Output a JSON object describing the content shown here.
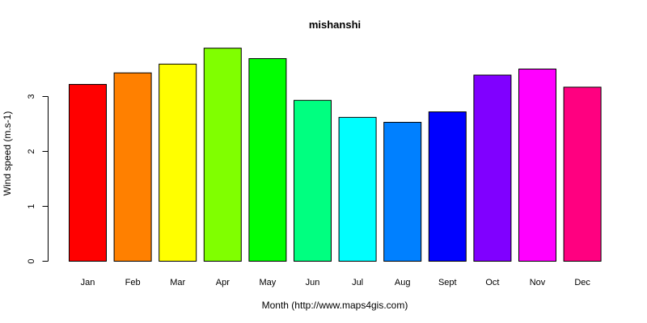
{
  "chart_data": {
    "type": "bar",
    "title": "mishanshi",
    "xlabel": "Month (http://www.maps4gis.com)",
    "ylabel": "Wind speed (m.s-1)",
    "categories": [
      "Jan",
      "Feb",
      "Mar",
      "Apr",
      "May",
      "Jun",
      "Jul",
      "Aug",
      "Sept",
      "Oct",
      "Nov",
      "Dec"
    ],
    "values": [
      3.22,
      3.43,
      3.59,
      3.88,
      3.69,
      2.93,
      2.62,
      2.53,
      2.72,
      3.39,
      3.5,
      3.17
    ],
    "colors": [
      "#FF0000",
      "#FF8000",
      "#FFFF00",
      "#80FF00",
      "#00FF00",
      "#00FF80",
      "#00FFFF",
      "#0080FF",
      "#0000FF",
      "#8000FF",
      "#FF00FF",
      "#FF0080"
    ],
    "yticks": [
      0,
      1,
      2,
      3
    ],
    "ylim": [
      0,
      3.88
    ],
    "grid": false,
    "legend": "none"
  }
}
